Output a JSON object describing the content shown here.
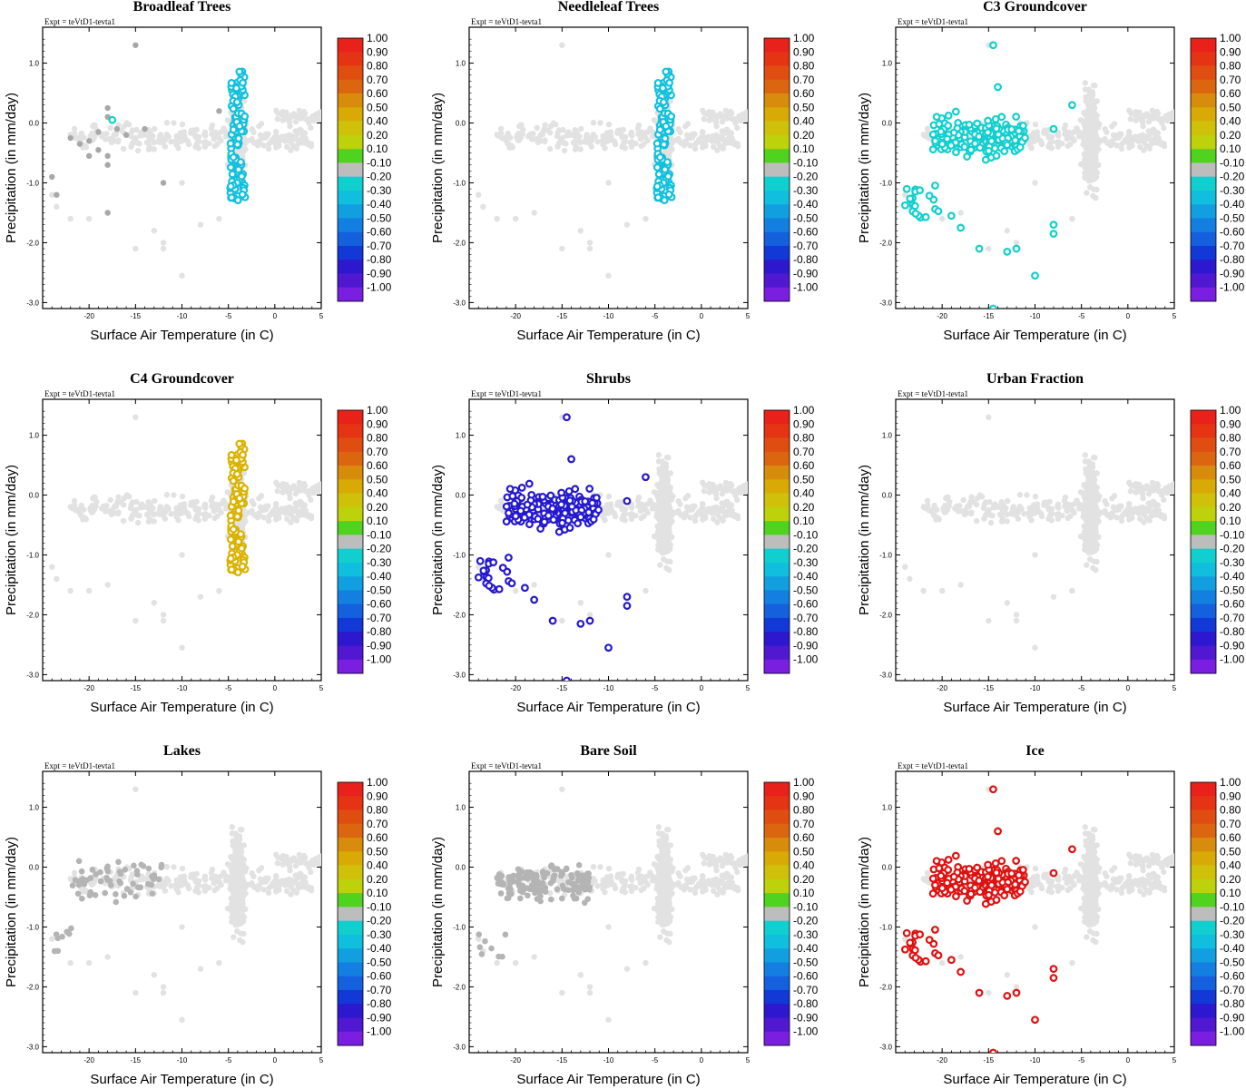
{
  "figure": {
    "expt_label": "Expt = teVtD1-tevta1",
    "xlabel": "Surface Air Temperature (in C)",
    "ylabel": "Precipitation (in mm/day)",
    "xticks": [
      "-20",
      "-15",
      "-10",
      "-5",
      "0",
      "5"
    ],
    "yticks": [
      "1.0",
      "0.0",
      "-1.0",
      "-2.0",
      "-3.0"
    ],
    "colorbar_labels": [
      "1.00",
      "0.90",
      "0.80",
      "0.70",
      "0.60",
      "0.50",
      "0.40",
      "0.20",
      "0.10",
      "-0.10",
      "-0.20",
      "-0.30",
      "-0.40",
      "-0.50",
      "-0.60",
      "-0.70",
      "-0.80",
      "-0.90",
      "-1.00"
    ],
    "colorbar_colors": [
      "#e8211b",
      "#e43414",
      "#e04d10",
      "#dc6510",
      "#d88c0c",
      "#d9aa06",
      "#cfc10a",
      "#bdd20a",
      "#4fd31f",
      "#bdbdbd",
      "#12cfcf",
      "#10bfdd",
      "#129fe0",
      "#137fe0",
      "#1460dd",
      "#1238d6",
      "#2d18cf",
      "#5018d0",
      "#7a1fe0"
    ],
    "background_color": "#e2e2e2"
  },
  "chart_data": [
    {
      "type": "scatter",
      "title": "Broadleaf Trees",
      "xlim": [
        -25,
        5
      ],
      "ylim": [
        -3.1,
        1.6
      ],
      "highlight": "cluster-cold-east",
      "highlight_color": "#12c0dd",
      "gray_points": [
        [
          -15,
          1.3
        ],
        [
          -22,
          -0.25
        ],
        [
          -21,
          -0.35
        ],
        [
          -20,
          -0.3
        ],
        [
          -20,
          -0.55
        ],
        [
          -19,
          -0.45
        ],
        [
          -18,
          -0.55
        ],
        [
          -17,
          -0.1
        ],
        [
          -16,
          -0.2
        ],
        [
          -14,
          -0.1
        ],
        [
          -12,
          -1.0
        ],
        [
          -19,
          -0.15
        ],
        [
          -18,
          -0.7
        ],
        [
          -24,
          -0.9
        ],
        [
          -23.5,
          -1.2
        ],
        [
          -18,
          -1.5
        ],
        [
          -18,
          0.25
        ],
        [
          -18,
          0.1
        ],
        [
          -6,
          0.2
        ]
      ],
      "cyan_points": [
        [
          -17.5,
          0.05
        ]
      ]
    },
    {
      "type": "scatter",
      "title": "Needleleaf Trees",
      "xlim": [
        -25,
        5
      ],
      "ylim": [
        -3.1,
        1.6
      ],
      "highlight": "cluster-cold-east",
      "highlight_color": "#12c0dd"
    },
    {
      "type": "scatter",
      "title": "C3 Groundcover",
      "xlim": [
        -25,
        5
      ],
      "ylim": [
        -3.1,
        1.6
      ],
      "highlight": "cluster-west",
      "highlight_color": "#12cfcf"
    },
    {
      "type": "scatter",
      "title": "C4 Groundcover",
      "xlim": [
        -25,
        5
      ],
      "ylim": [
        -3.1,
        1.6
      ],
      "highlight": "cluster-cold-east",
      "highlight_color": "#dab200"
    },
    {
      "type": "scatter",
      "title": "Shrubs",
      "xlim": [
        -25,
        5
      ],
      "ylim": [
        -3.1,
        1.6
      ],
      "highlight": "cluster-west",
      "highlight_color": "#2418d0"
    },
    {
      "type": "scatter",
      "title": "Urban Fraction",
      "xlim": [
        -25,
        5
      ],
      "ylim": [
        -3.1,
        1.6
      ],
      "highlight": "none",
      "highlight_color": "#e2e2e2"
    },
    {
      "type": "scatter",
      "title": "Lakes",
      "xlim": [
        -25,
        5
      ],
      "ylim": [
        -3.1,
        1.6
      ],
      "highlight": "gray-west",
      "highlight_color": "#b4b4b4"
    },
    {
      "type": "scatter",
      "title": "Bare Soil",
      "xlim": [
        -25,
        5
      ],
      "ylim": [
        -3.1,
        1.6
      ],
      "highlight": "gray-west-big",
      "highlight_color": "#b4b4b4"
    },
    {
      "type": "scatter",
      "title": "Ice",
      "xlim": [
        -25,
        5
      ],
      "ylim": [
        -3.1,
        1.6
      ],
      "highlight": "cluster-west",
      "highlight_color": "#e01010"
    }
  ]
}
